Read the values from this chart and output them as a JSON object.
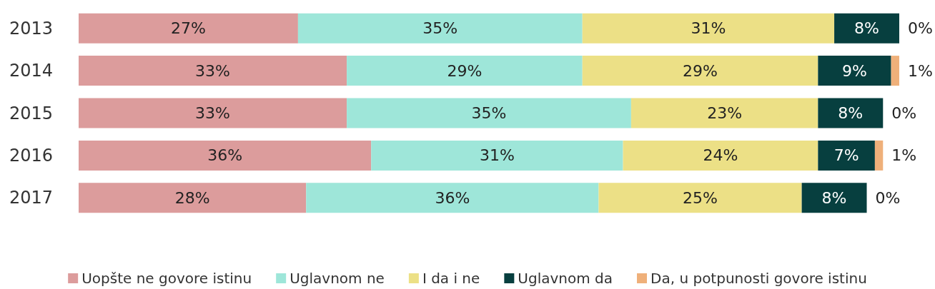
{
  "chart_data": {
    "type": "bar",
    "orientation": "horizontal",
    "stacked": true,
    "legend": "bottom",
    "grid": false,
    "tick_labels": "y",
    "categories": [
      "2013",
      "2014",
      "2015",
      "2016",
      "2017"
    ],
    "series": [
      {
        "name": "Uopšte ne govore istinu",
        "color": "#dc9c9c",
        "values": [
          27,
          33,
          33,
          36,
          28
        ],
        "value_labels": [
          "27%",
          "33%",
          "33%",
          "36%",
          "28%"
        ]
      },
      {
        "name": "Uglavnom ne",
        "color": "#9ee6d9",
        "values": [
          35,
          29,
          35,
          31,
          36
        ],
        "value_labels": [
          "35%",
          "29%",
          "35%",
          "31%",
          "36%"
        ]
      },
      {
        "name": "I da i ne",
        "color": "#ece086",
        "values": [
          31,
          29,
          23,
          24,
          25
        ],
        "value_labels": [
          "31%",
          "29%",
          "23%",
          "24%",
          "25%"
        ]
      },
      {
        "name": "Uglavnom da",
        "color": "#073f3f",
        "values": [
          8,
          9,
          8,
          7,
          8
        ],
        "value_labels": [
          "8%",
          "9%",
          "8%",
          "7%",
          "8%"
        ]
      },
      {
        "name": "Da, u potpunosti govore istinu",
        "color": "#efb07a",
        "values": [
          0,
          1,
          0,
          1,
          0
        ],
        "value_labels": [
          "0%",
          "1%",
          "0%",
          "1%",
          "0%"
        ]
      }
    ]
  }
}
